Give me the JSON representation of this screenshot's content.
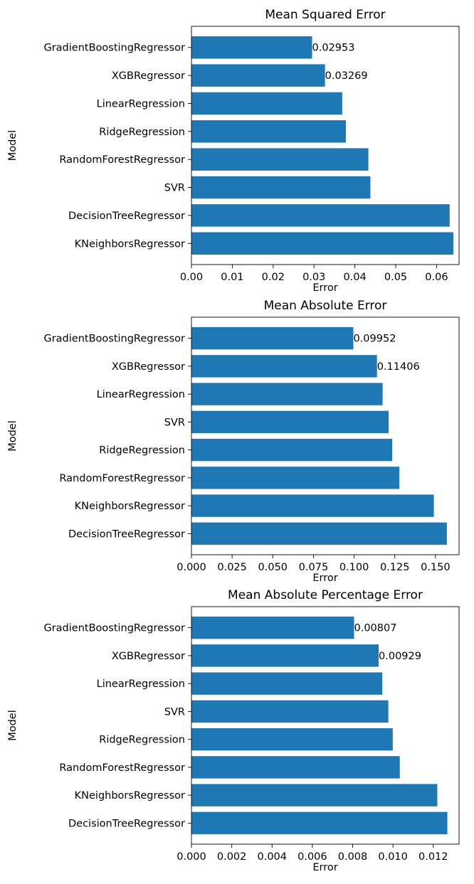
{
  "chart_data": [
    {
      "type": "bar",
      "orientation": "horizontal",
      "title": "Mean Squared Error",
      "xlabel": "Error",
      "ylabel": "Model",
      "xlim": [
        0,
        0.0655
      ],
      "xticks": [
        "0.00",
        "0.01",
        "0.02",
        "0.03",
        "0.04",
        "0.05",
        "0.06"
      ],
      "xtick_values": [
        0,
        0.01,
        0.02,
        0.03,
        0.04,
        0.05,
        0.06
      ],
      "grid": false,
      "bar_color": "#1f77b4",
      "categories": [
        "GradientBoostingRegressor",
        "XGBRegressor",
        "LinearRegression",
        "RidgeRegression",
        "RandomForestRegressor",
        "SVR",
        "DecisionTreeRegressor",
        "KNeighborsRegressor"
      ],
      "values": [
        0.02953,
        0.03269,
        0.0369,
        0.0378,
        0.0433,
        0.0438,
        0.0632,
        0.0641
      ],
      "data_labels": [
        "0.02953",
        "0.03269",
        "",
        "",
        "",
        "",
        "",
        ""
      ]
    },
    {
      "type": "bar",
      "orientation": "horizontal",
      "title": "Mean Absolute Error",
      "xlabel": "Error",
      "ylabel": "Model",
      "xlim": [
        0,
        0.1645
      ],
      "xticks": [
        "0.000",
        "0.025",
        "0.050",
        "0.075",
        "0.100",
        "0.125",
        "0.150"
      ],
      "xtick_values": [
        0,
        0.025,
        0.05,
        0.075,
        0.1,
        0.125,
        0.15
      ],
      "grid": false,
      "bar_color": "#1f77b4",
      "categories": [
        "GradientBoostingRegressor",
        "XGBRegressor",
        "LinearRegression",
        "SVR",
        "RidgeRegression",
        "RandomForestRegressor",
        "KNeighborsRegressor",
        "DecisionTreeRegressor"
      ],
      "values": [
        0.09952,
        0.11406,
        0.1175,
        0.1212,
        0.1234,
        0.1278,
        0.149,
        0.157
      ],
      "data_labels": [
        "0.09952",
        "0.11406",
        "",
        "",
        "",
        "",
        "",
        ""
      ]
    },
    {
      "type": "bar",
      "orientation": "horizontal",
      "title": "Mean Absolute Percentage Error",
      "xlabel": "Error",
      "ylabel": "Model",
      "xlim": [
        0,
        0.01328
      ],
      "xticks": [
        "0.000",
        "0.002",
        "0.004",
        "0.006",
        "0.008",
        "0.010",
        "0.012"
      ],
      "xtick_values": [
        0,
        0.002,
        0.004,
        0.006,
        0.008,
        0.01,
        0.012
      ],
      "grid": false,
      "bar_color": "#1f77b4",
      "categories": [
        "GradientBoostingRegressor",
        "XGBRegressor",
        "LinearRegression",
        "SVR",
        "RidgeRegression",
        "RandomForestRegressor",
        "KNeighborsRegressor",
        "DecisionTreeRegressor"
      ],
      "values": [
        0.00807,
        0.00929,
        0.00947,
        0.00977,
        0.00999,
        0.01034,
        0.0122,
        0.0127
      ],
      "data_labels": [
        "0.00807",
        "0.00929",
        "",
        "",
        "",
        "",
        "",
        ""
      ]
    }
  ]
}
